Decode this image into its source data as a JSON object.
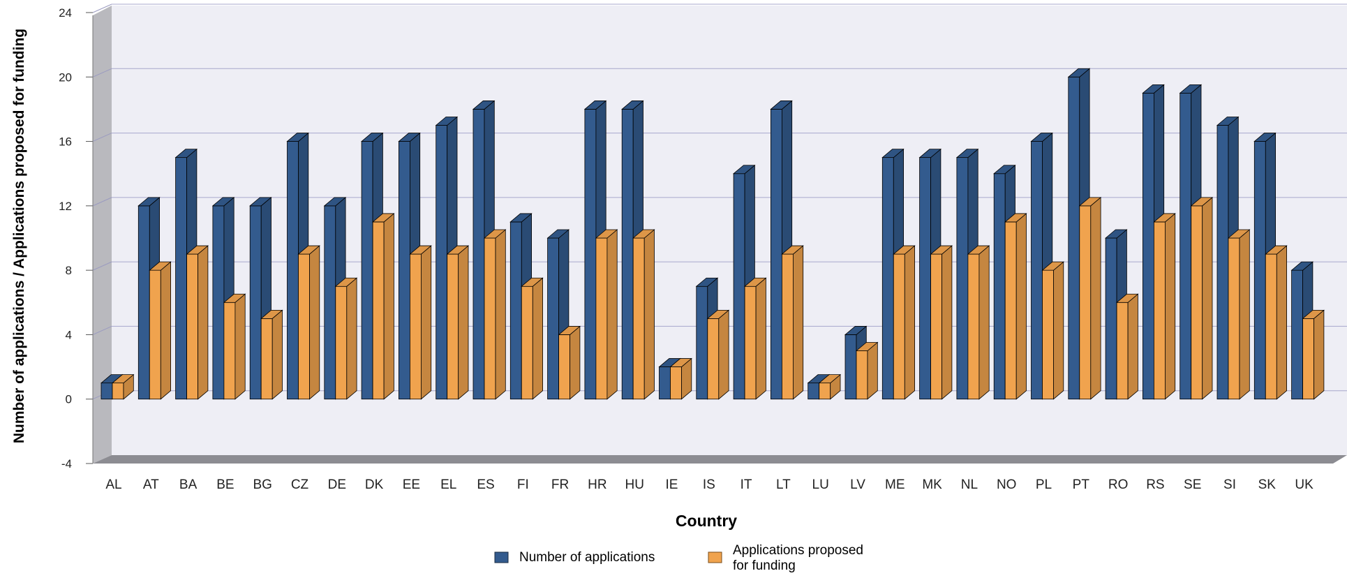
{
  "chart_data": {
    "type": "bar",
    "xlabel": "Country",
    "ylabel": "Number of applications / Applications proposed for funding",
    "ylim": [
      -4,
      24
    ],
    "yticks": [
      -4,
      0,
      4,
      8,
      12,
      16,
      20,
      24
    ],
    "grid": true,
    "legend_position": "bottom-center",
    "categories": [
      "AL",
      "AT",
      "BA",
      "BE",
      "BG",
      "CZ",
      "DE",
      "DK",
      "EE",
      "EL",
      "ES",
      "FI",
      "FR",
      "HR",
      "HU",
      "IE",
      "IS",
      "IT",
      "LT",
      "LU",
      "LV",
      "ME",
      "MK",
      "NL",
      "NO",
      "PL",
      "PT",
      "RO",
      "RS",
      "SE",
      "SI",
      "SK",
      "UK"
    ],
    "series": [
      {
        "name": "Number of applications",
        "color": "#335B8E",
        "values": [
          1,
          12,
          15,
          12,
          12,
          16,
          12,
          16,
          16,
          17,
          18,
          11,
          10,
          18,
          18,
          2,
          7,
          14,
          18,
          1,
          4,
          15,
          15,
          15,
          14,
          16,
          20,
          10,
          19,
          19,
          17,
          16,
          8
        ]
      },
      {
        "name": "Applications proposed for funding",
        "color": "#F0A34E",
        "values": [
          1,
          8,
          9,
          6,
          5,
          9,
          7,
          11,
          9,
          9,
          10,
          7,
          4,
          10,
          10,
          2,
          5,
          7,
          9,
          1,
          3,
          9,
          9,
          9,
          11,
          8,
          12,
          6,
          11,
          12,
          10,
          9,
          5
        ]
      }
    ]
  },
  "legend": {
    "items": [
      {
        "label": "Number of applications",
        "color": "#335B8E"
      },
      {
        "label_lines": [
          "Applications proposed",
          "for funding"
        ],
        "color": "#F0A34E"
      }
    ]
  }
}
